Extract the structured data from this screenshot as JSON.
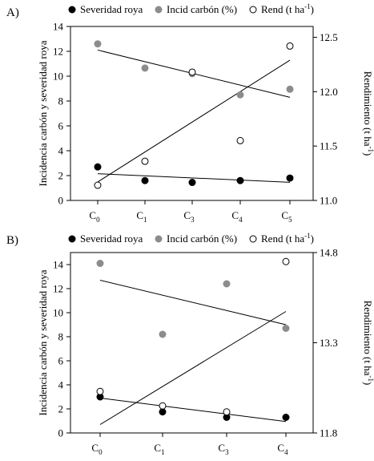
{
  "chart_data": [
    {
      "panel_label": "A)",
      "type": "scatter",
      "categories": [
        "C0",
        "C1",
        "C3",
        "C4",
        "C5"
      ],
      "category_labels": [
        {
          "main": "C",
          "sub": "0"
        },
        {
          "main": "C",
          "sub": "1"
        },
        {
          "main": "C",
          "sub": "3"
        },
        {
          "main": "C",
          "sub": "4"
        },
        {
          "main": "C",
          "sub": "5"
        }
      ],
      "ylabel": "Incidencia carbón y severidad roya",
      "y2label": "Rendimiento (t ha",
      "y2label_sup": "-1",
      "y2label_end": ")",
      "ylim": [
        0,
        14
      ],
      "yticks": [
        0,
        2,
        4,
        6,
        8,
        10,
        12,
        14
      ],
      "y2lim": [
        11.0,
        12.6
      ],
      "y2ticks": [
        11.0,
        11.5,
        12.0,
        12.5
      ],
      "y2tick_labels": [
        "11.0",
        "11.5",
        "12.0",
        "12.5"
      ],
      "legend": [
        {
          "marker": "filled-black",
          "text": "Severidad roya",
          "sup": ""
        },
        {
          "marker": "filled-gray",
          "text": "Incid carbón (%)",
          "sup": ""
        },
        {
          "marker": "open",
          "text": "Rend (t ha",
          "sup": "-1",
          "end": ")"
        }
      ],
      "series": [
        {
          "name": "Severidad roya",
          "axis": "left",
          "marker": "filled-black",
          "color": "#000000",
          "values": [
            2.7,
            1.6,
            1.45,
            1.6,
            1.8
          ],
          "trend": [
            2.15,
            1.46
          ]
        },
        {
          "name": "Incid carbón (%)",
          "axis": "left",
          "marker": "filled-gray",
          "color": "#8c8c8c",
          "values": [
            12.6,
            10.65,
            10.2,
            8.5,
            8.95
          ],
          "trend": [
            12.1,
            8.3
          ]
        },
        {
          "name": "Rend (t ha-1)",
          "axis": "right",
          "marker": "open",
          "color": "#000000",
          "values": [
            11.14,
            11.36,
            12.18,
            11.55,
            12.42
          ],
          "trend": [
            11.17,
            12.29
          ]
        }
      ]
    },
    {
      "panel_label": "B)",
      "type": "scatter",
      "categories": [
        "C0",
        "C1",
        "C3",
        "C4"
      ],
      "category_labels": [
        {
          "main": "C",
          "sub": "0"
        },
        {
          "main": "C",
          "sub": "1"
        },
        {
          "main": "C",
          "sub": "3"
        },
        {
          "main": "C",
          "sub": "4"
        }
      ],
      "ylabel": "Incidencia carbón y severidad roya",
      "y2label": "Rendimiento (t ha",
      "y2label_sup": "-1",
      "y2label_end": ")",
      "ylim": [
        0,
        15
      ],
      "yticks": [
        0,
        2,
        4,
        6,
        8,
        10,
        12,
        14
      ],
      "y2lim": [
        11.8,
        14.8
      ],
      "y2ticks": [
        11.8,
        13.3,
        14.8
      ],
      "y2tick_labels": [
        "11.8",
        "13.3",
        "14.8"
      ],
      "legend": [
        {
          "marker": "filled-black",
          "text": "Severidad roya",
          "sup": ""
        },
        {
          "marker": "filled-gray",
          "text": "Incid carbón (%)",
          "sup": ""
        },
        {
          "marker": "open",
          "text": "Rend (t ha",
          "sup": "-1",
          "end": ")"
        }
      ],
      "series": [
        {
          "name": "Severidad roya",
          "axis": "left",
          "marker": "filled-black",
          "color": "#000000",
          "values": [
            3.0,
            1.75,
            1.3,
            1.3
          ],
          "trend": [
            2.9,
            0.95
          ]
        },
        {
          "name": "Incid carbón (%)",
          "axis": "left",
          "marker": "filled-gray",
          "color": "#8c8c8c",
          "values": [
            14.1,
            8.2,
            12.4,
            8.7
          ],
          "trend": [
            12.7,
            9.0
          ]
        },
        {
          "name": "Rend (t ha-1)",
          "axis": "right",
          "marker": "open",
          "color": "#000000",
          "values": [
            12.49,
            12.25,
            12.15,
            14.65
          ],
          "trend": [
            11.94,
            13.82
          ]
        }
      ]
    }
  ]
}
